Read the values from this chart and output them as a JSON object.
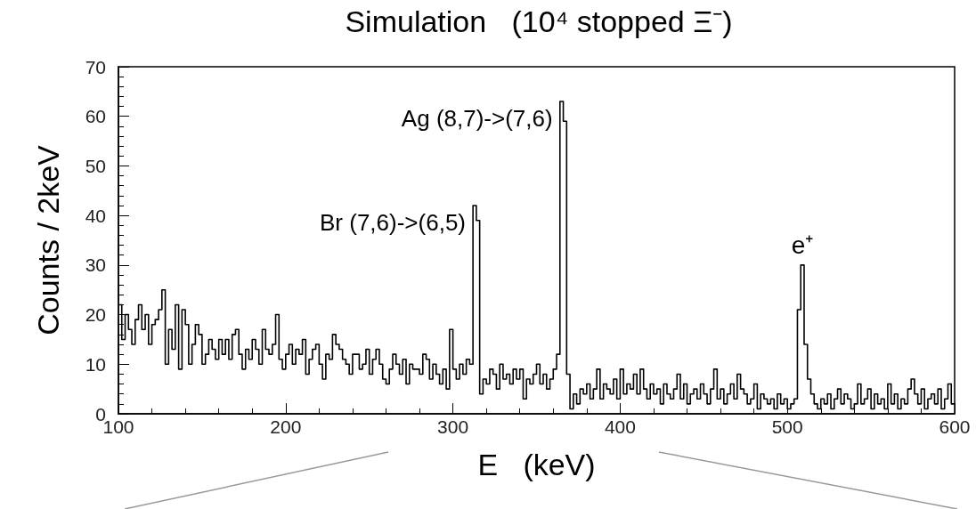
{
  "chart_data": {
    "type": "histogram",
    "title": "Simulation   (10⁴ stopped Ξ⁻)",
    "xlabel": "E   (keV)",
    "ylabel": "Counts / 2keV",
    "color": "#000000",
    "xlim": [
      100,
      600
    ],
    "xticks": [
      100,
      200,
      300,
      400,
      500,
      600
    ],
    "ylim": [
      0,
      70
    ],
    "yticks": [
      0,
      10,
      20,
      30,
      40,
      50,
      60,
      70
    ],
    "bins": [
      100,
      102,
      104,
      106,
      108,
      110,
      112,
      114,
      116,
      118,
      120,
      122,
      124,
      126,
      128,
      130,
      132,
      134,
      136,
      138,
      140,
      142,
      144,
      146,
      148,
      150,
      152,
      154,
      156,
      158,
      160,
      162,
      164,
      166,
      168,
      170,
      172,
      174,
      176,
      178,
      180,
      182,
      184,
      186,
      188,
      190,
      192,
      194,
      196,
      198,
      200,
      202,
      204,
      206,
      208,
      210,
      212,
      214,
      216,
      218,
      220,
      222,
      224,
      226,
      228,
      230,
      232,
      234,
      236,
      238,
      240,
      242,
      244,
      246,
      248,
      250,
      252,
      254,
      256,
      258,
      260,
      262,
      264,
      266,
      268,
      270,
      272,
      274,
      276,
      278,
      280,
      282,
      284,
      286,
      288,
      290,
      292,
      294,
      296,
      298,
      300,
      302,
      304,
      306,
      308,
      310,
      312,
      314,
      316,
      318,
      320,
      322,
      324,
      326,
      328,
      330,
      332,
      334,
      336,
      338,
      340,
      342,
      344,
      346,
      348,
      350,
      352,
      354,
      356,
      358,
      360,
      362,
      364,
      366,
      368,
      370,
      372,
      374,
      376,
      378,
      380,
      382,
      384,
      386,
      388,
      390,
      392,
      394,
      396,
      398,
      400,
      402,
      404,
      406,
      408,
      410,
      412,
      414,
      416,
      418,
      420,
      422,
      424,
      426,
      428,
      430,
      432,
      434,
      436,
      438,
      440,
      442,
      444,
      446,
      448,
      450,
      452,
      454,
      456,
      458,
      460,
      462,
      464,
      466,
      468,
      470,
      472,
      474,
      476,
      478,
      480,
      482,
      484,
      486,
      488,
      490,
      492,
      494,
      496,
      498,
      500,
      502,
      504,
      506,
      508,
      510,
      512,
      514,
      516,
      518,
      520,
      522,
      524,
      526,
      528,
      530,
      532,
      534,
      536,
      538,
      540,
      542,
      544,
      546,
      548,
      550,
      552,
      554,
      556,
      558,
      560,
      562,
      564,
      566,
      568,
      570,
      572,
      574,
      576,
      578,
      580,
      582,
      584,
      586,
      588,
      590,
      592,
      594,
      596,
      598,
      600
    ],
    "values": [
      22,
      15,
      20,
      17,
      14,
      19,
      22,
      17,
      20,
      14,
      18,
      19,
      21,
      25,
      10,
      17,
      13,
      22,
      9,
      21,
      18,
      10,
      14,
      18,
      16,
      10,
      12,
      15,
      13,
      11,
      15,
      12,
      15,
      11,
      16,
      17,
      12,
      9,
      13,
      11,
      15,
      13,
      10,
      17,
      13,
      12,
      14,
      20,
      11,
      9,
      12,
      14,
      10,
      13,
      12,
      15,
      8,
      11,
      13,
      14,
      10,
      7,
      12,
      11,
      16,
      14,
      13,
      11,
      10,
      8,
      12,
      12,
      9,
      10,
      13,
      8,
      11,
      13,
      10,
      7,
      6,
      9,
      12,
      10,
      8,
      11,
      6,
      10,
      9,
      9,
      8,
      12,
      11,
      7,
      10,
      8,
      6,
      9,
      5,
      17,
      9,
      7,
      10,
      8,
      11,
      10,
      42,
      39,
      4,
      7,
      6,
      9,
      8,
      5,
      10,
      7,
      8,
      6,
      9,
      7,
      9,
      3,
      7,
      6,
      8,
      10,
      6,
      8,
      5,
      7,
      9,
      12,
      63,
      59,
      8,
      1,
      4,
      2,
      5,
      4,
      6,
      3,
      5,
      9,
      3,
      6,
      5,
      4,
      7,
      3,
      9,
      4,
      6,
      5,
      8,
      4,
      9,
      5,
      3,
      6,
      4,
      5,
      2,
      6,
      4,
      3,
      5,
      8,
      3,
      6,
      2,
      4,
      5,
      3,
      6,
      4,
      2,
      5,
      9,
      3,
      5,
      2,
      4,
      6,
      3,
      8,
      5,
      4,
      2,
      3,
      6,
      1,
      4,
      3,
      2,
      3,
      1,
      4,
      2,
      3,
      1,
      2,
      3,
      21,
      30,
      14,
      7,
      4,
      2,
      1,
      3,
      2,
      4,
      1,
      3,
      5,
      2,
      4,
      3,
      1,
      2,
      6,
      2,
      3,
      5,
      1,
      4,
      2,
      3,
      1,
      6,
      2,
      4,
      1,
      3,
      2,
      5,
      7,
      4,
      2,
      5,
      1,
      3,
      4,
      2,
      5,
      1,
      3,
      6,
      2
    ],
    "annotations": [
      {
        "text": "Br (7,6)->(6,5)",
        "x": 313,
        "y": 42
      },
      {
        "text": "Ag (8,7)->(7,6)",
        "x": 365,
        "y": 63
      },
      {
        "text": "e⁺",
        "x": 509,
        "y": 30
      }
    ]
  }
}
